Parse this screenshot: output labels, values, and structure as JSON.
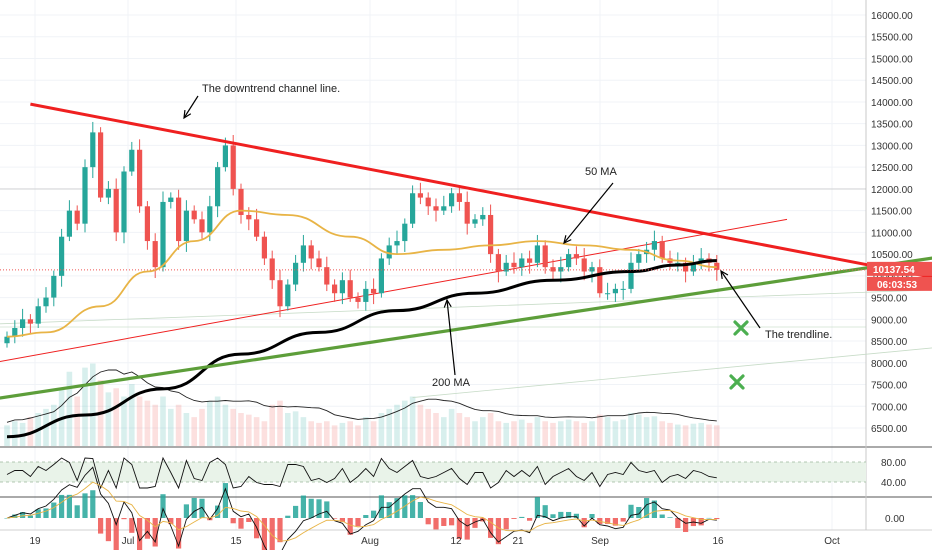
{
  "chart_data": {
    "type": "candlestick",
    "y_axis": {
      "ticks": [
        "16000.00",
        "15500.00",
        "15000.00",
        "14500.00",
        "14000.00",
        "13500.00",
        "13000.00",
        "12500.00",
        "12000.00",
        "11500.00",
        "11000.00",
        "10500.00",
        "10000.00",
        "9500.00",
        "9000.00",
        "8500.00",
        "8000.00",
        "7500.00",
        "7000.00",
        "6500.00"
      ],
      "range": [
        6250,
        16250
      ]
    },
    "x_axis": {
      "ticks": [
        "19",
        "Jul",
        "15",
        "Aug",
        "12",
        "21",
        "Sep",
        "16",
        "Oct"
      ]
    },
    "price_badge": {
      "last": "10137.54",
      "countdown": "06:03:53",
      "color": "#ef5350"
    },
    "series_colors": {
      "up": "#26a69a",
      "down": "#ef5350",
      "ma50": "#e8b446",
      "ma200": "#000000",
      "channel": "#ef2020",
      "trendline": "#5d9e3a",
      "marker": "#4caf50"
    },
    "ohlc_path": [
      [
        8600,
        0
      ],
      [
        8800,
        1
      ],
      [
        9000,
        2
      ],
      [
        8900,
        3
      ],
      [
        9300,
        4
      ],
      [
        9500,
        5
      ],
      [
        10000,
        6
      ],
      [
        10900,
        7
      ],
      [
        11500,
        8
      ],
      [
        11200,
        9
      ],
      [
        12500,
        10
      ],
      [
        13300,
        11
      ],
      [
        11800,
        12
      ],
      [
        12000,
        13
      ],
      [
        11000,
        14
      ],
      [
        12400,
        15
      ],
      [
        12900,
        16
      ],
      [
        11600,
        17
      ],
      [
        10800,
        18
      ],
      [
        10200,
        19
      ],
      [
        11700,
        20
      ],
      [
        11800,
        21
      ],
      [
        10800,
        22
      ],
      [
        11500,
        23
      ],
      [
        11300,
        24
      ],
      [
        11000,
        25
      ],
      [
        11600,
        26
      ],
      [
        12500,
        27
      ],
      [
        13000,
        28
      ],
      [
        12000,
        29
      ],
      [
        11400,
        30
      ],
      [
        11300,
        31
      ],
      [
        10900,
        32
      ],
      [
        10400,
        33
      ],
      [
        9900,
        34
      ],
      [
        9300,
        35
      ],
      [
        9800,
        36
      ],
      [
        10300,
        37
      ],
      [
        10700,
        38
      ],
      [
        10400,
        39
      ],
      [
        10200,
        40
      ],
      [
        9800,
        41
      ],
      [
        9600,
        42
      ],
      [
        9900,
        43
      ],
      [
        9500,
        44
      ],
      [
        9400,
        45
      ],
      [
        9700,
        46
      ],
      [
        9600,
        47
      ],
      [
        10400,
        48
      ],
      [
        10700,
        49
      ],
      [
        10800,
        50
      ],
      [
        11200,
        51
      ],
      [
        11900,
        52
      ],
      [
        11800,
        53
      ],
      [
        11600,
        54
      ],
      [
        11500,
        55
      ],
      [
        11600,
        56
      ],
      [
        11900,
        57
      ],
      [
        11700,
        58
      ],
      [
        11200,
        59
      ],
      [
        11300,
        60
      ],
      [
        11400,
        61
      ],
      [
        10500,
        62
      ],
      [
        10100,
        63
      ],
      [
        10300,
        64
      ],
      [
        10200,
        65
      ],
      [
        10400,
        66
      ],
      [
        10300,
        67
      ],
      [
        10700,
        68
      ],
      [
        10200,
        69
      ],
      [
        10100,
        70
      ],
      [
        10200,
        71
      ],
      [
        10500,
        72
      ],
      [
        10400,
        73
      ],
      [
        10100,
        74
      ],
      [
        10200,
        75
      ],
      [
        9600,
        76
      ],
      [
        9600,
        77
      ],
      [
        9700,
        78
      ],
      [
        9700,
        79
      ],
      [
        10300,
        80
      ],
      [
        10500,
        81
      ],
      [
        10600,
        82
      ],
      [
        10800,
        83
      ],
      [
        10400,
        84
      ],
      [
        10300,
        85
      ],
      [
        10300,
        86
      ],
      [
        10100,
        87
      ],
      [
        10300,
        88
      ],
      [
        10400,
        89
      ],
      [
        10300,
        90
      ],
      [
        10137,
        91
      ]
    ],
    "ma50": [
      [
        8600,
        0
      ],
      [
        8700,
        5
      ],
      [
        9300,
        12
      ],
      [
        10100,
        18
      ],
      [
        10800,
        24
      ],
      [
        11500,
        30
      ],
      [
        11400,
        36
      ],
      [
        10900,
        44
      ],
      [
        10500,
        50
      ],
      [
        10600,
        56
      ],
      [
        10700,
        62
      ],
      [
        10800,
        68
      ],
      [
        10700,
        74
      ],
      [
        10600,
        80
      ],
      [
        10350,
        86
      ],
      [
        10200,
        91
      ]
    ],
    "ma200": [
      [
        6300,
        0
      ],
      [
        6800,
        10
      ],
      [
        7400,
        20
      ],
      [
        8200,
        30
      ],
      [
        8700,
        40
      ],
      [
        9200,
        50
      ],
      [
        9600,
        60
      ],
      [
        9900,
        70
      ],
      [
        10100,
        80
      ],
      [
        10250,
        86
      ],
      [
        10350,
        91
      ]
    ],
    "channel_line": {
      "from": [
        13950,
        3
      ],
      "to": [
        9920,
        120
      ]
    },
    "channel_thin": {
      "from": [
        7800,
        -8
      ],
      "to": [
        11300,
        100
      ]
    },
    "trendline": {
      "from": [
        7000,
        -8
      ],
      "to": [
        10500,
        122
      ]
    },
    "faint_lines": [
      {
        "from": [
          8850,
          -8
        ],
        "to": [
          9700,
          122
        ]
      },
      {
        "from": [
          7200,
          52
        ],
        "to": [
          8400,
          122
        ]
      }
    ],
    "volume_profile_peak": 0.75,
    "rsi": {
      "ticks": [
        "80.00",
        "40.00"
      ],
      "band": [
        40,
        80
      ]
    },
    "macd": {
      "ticks": [
        "0.00"
      ]
    },
    "annotations": [
      {
        "text": "The downtrend channel line."
      },
      {
        "text": "50 MA"
      },
      {
        "text": "200 MA"
      },
      {
        "text": "The trendline."
      }
    ]
  }
}
